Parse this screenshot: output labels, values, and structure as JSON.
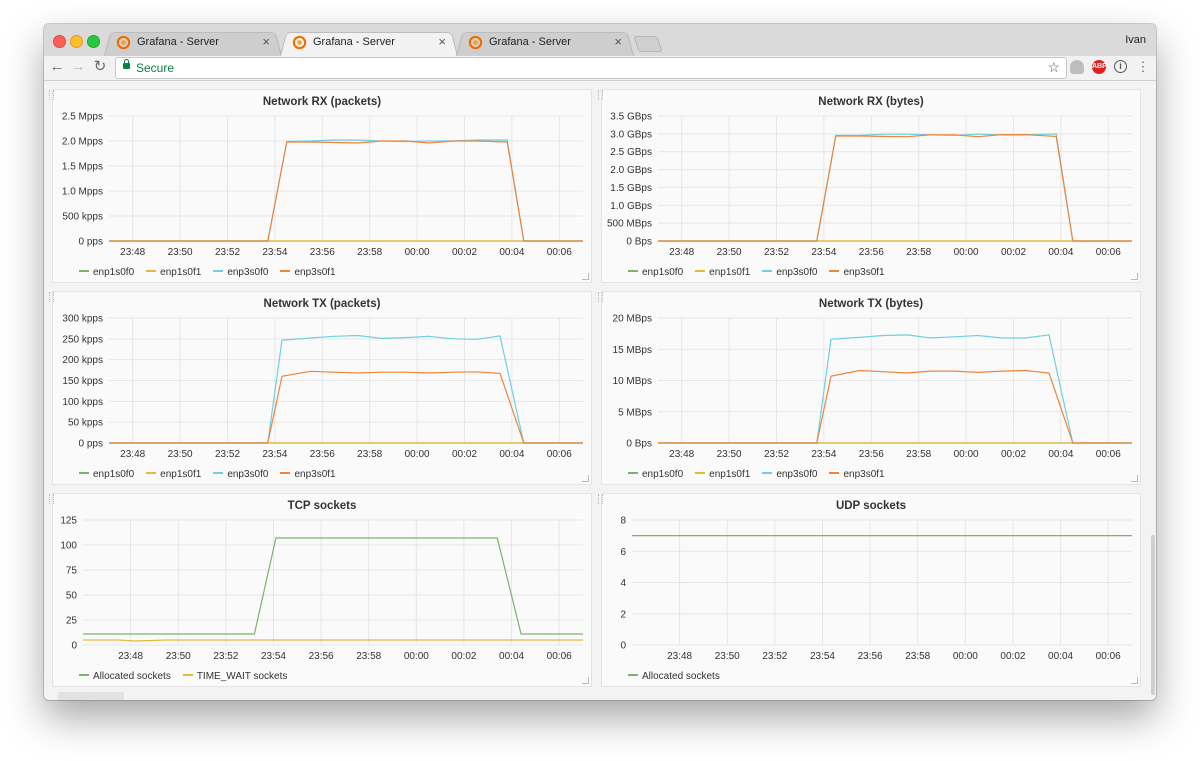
{
  "browser": {
    "tabs": [
      {
        "title": "Grafana - Server",
        "active": false
      },
      {
        "title": "Grafana - Server",
        "active": true
      },
      {
        "title": "Grafana - Server",
        "active": false
      }
    ],
    "profile_name": "Ivan",
    "address_secure_label": "Secure",
    "close_glyph": "×",
    "icons": [
      "back-arrow-icon",
      "forward-arrow-icon",
      "reload-icon",
      "lock-icon",
      "star-icon",
      "cloud-extension-icon",
      "adblock-icon",
      "info-icon",
      "menu-icon"
    ],
    "adblock_label": "ABP"
  },
  "colors": {
    "enp1s0f0": "#7eb26d",
    "enp1s0f1": "#eab839",
    "enp3s0f0": "#6ed0e0",
    "enp3s0f1": "#ef843c",
    "allocated": "#7eb26d",
    "time_wait": "#eab839"
  },
  "panels": [
    {
      "title": "Network RX (packets)",
      "legend": [
        "enp1s0f0",
        "enp1s0f1",
        "enp3s0f0",
        "enp3s0f1"
      ],
      "chart_data": {
        "type": "line",
        "title": "Network RX (packets)",
        "yticks": [
          "0 pps",
          "500 kpps",
          "1.0 Mpps",
          "1.5 Mpps",
          "2.0 Mpps",
          "2.5 Mpps"
        ],
        "ylim": [
          0,
          2.5
        ],
        "xticks": [
          "23:48",
          "23:50",
          "23:52",
          "23:54",
          "23:56",
          "23:58",
          "00:00",
          "00:02",
          "00:04",
          "00:06"
        ],
        "xlim": [
          0,
          20
        ],
        "series": [
          {
            "name": "enp1s0f0",
            "x": [
              0,
              20
            ],
            "y": [
              0,
              0
            ]
          },
          {
            "name": "enp1s0f1",
            "x": [
              0,
              20
            ],
            "y": [
              0,
              0
            ]
          },
          {
            "name": "enp3s0f0",
            "x": [
              0,
              6.7,
              7.5,
              8.5,
              9.5,
              10.5,
              11.5,
              12.5,
              13.5,
              14.5,
              15.5,
              16.8,
              17.5,
              20
            ],
            "y": [
              0,
              0,
              1.99,
              2.0,
              2.02,
              2.02,
              2.0,
              1.99,
              2.0,
              2.0,
              2.02,
              2.02,
              0,
              0
            ]
          },
          {
            "name": "enp3s0f1",
            "x": [
              0,
              6.7,
              7.5,
              8.5,
              9.5,
              10.5,
              11.5,
              12.5,
              13.5,
              14.5,
              15.5,
              16.8,
              17.5,
              20
            ],
            "y": [
              0,
              0,
              1.98,
              1.98,
              1.97,
              1.96,
              2.0,
              2.0,
              1.96,
              2.0,
              2.0,
              1.98,
              0,
              0
            ]
          }
        ]
      }
    },
    {
      "title": "Network RX (bytes)",
      "legend": [
        "enp1s0f0",
        "enp1s0f1",
        "enp3s0f0",
        "enp3s0f1"
      ],
      "chart_data": {
        "type": "line",
        "title": "Network RX (bytes)",
        "yticks": [
          "0 Bps",
          "500 MBps",
          "1.0 GBps",
          "1.5 GBps",
          "2.0 GBps",
          "2.5 GBps",
          "3.0 GBps",
          "3.5 GBps"
        ],
        "ylim": [
          0,
          3.5
        ],
        "xticks": [
          "23:48",
          "23:50",
          "23:52",
          "23:54",
          "23:56",
          "23:58",
          "00:00",
          "00:02",
          "00:04",
          "00:06"
        ],
        "xlim": [
          0,
          20
        ],
        "series": [
          {
            "name": "enp1s0f0",
            "x": [
              0,
              20
            ],
            "y": [
              0,
              0
            ]
          },
          {
            "name": "enp1s0f1",
            "x": [
              0,
              20
            ],
            "y": [
              0,
              0
            ]
          },
          {
            "name": "enp3s0f0",
            "x": [
              0,
              6.7,
              7.5,
              8.5,
              9.5,
              10.5,
              11.5,
              12.5,
              13.5,
              14.5,
              15.5,
              16.8,
              17.5,
              20
            ],
            "y": [
              0,
              0,
              2.96,
              2.96,
              2.99,
              2.99,
              2.97,
              2.96,
              2.99,
              2.97,
              2.97,
              3.0,
              0,
              0
            ]
          },
          {
            "name": "enp3s0f1",
            "x": [
              0,
              6.7,
              7.5,
              8.5,
              9.5,
              10.5,
              11.5,
              12.5,
              13.5,
              14.5,
              15.5,
              16.8,
              17.5,
              20
            ],
            "y": [
              0,
              0,
              2.94,
              2.94,
              2.93,
              2.92,
              2.97,
              2.97,
              2.92,
              2.98,
              2.98,
              2.93,
              0,
              0
            ]
          }
        ]
      }
    },
    {
      "title": "Network TX (packets)",
      "legend": [
        "enp1s0f0",
        "enp1s0f1",
        "enp3s0f0",
        "enp3s0f1"
      ],
      "chart_data": {
        "type": "line",
        "title": "Network TX (packets)",
        "yticks": [
          "0 pps",
          "50 kpps",
          "100 kpps",
          "150 kpps",
          "200 kpps",
          "250 kpps",
          "300 kpps"
        ],
        "ylim": [
          0,
          300
        ],
        "xticks": [
          "23:48",
          "23:50",
          "23:52",
          "23:54",
          "23:56",
          "23:58",
          "00:00",
          "00:02",
          "00:04",
          "00:06"
        ],
        "xlim": [
          0,
          20
        ],
        "series": [
          {
            "name": "enp1s0f0",
            "x": [
              0,
              20
            ],
            "y": [
              0,
              0
            ]
          },
          {
            "name": "enp1s0f1",
            "x": [
              0,
              20
            ],
            "y": [
              0,
              0
            ]
          },
          {
            "name": "enp3s0f0",
            "x": [
              0,
              6.7,
              7.3,
              8.5,
              9.5,
              10.5,
              11.5,
              12.5,
              13.5,
              14.5,
              15.5,
              16.5,
              17.5,
              20
            ],
            "y": [
              0,
              0,
              247,
              252,
              256,
              258,
              251,
              253,
              256,
              250,
              249,
              257,
              0,
              0
            ]
          },
          {
            "name": "enp3s0f1",
            "x": [
              0,
              6.7,
              7.3,
              8.5,
              9.5,
              10.5,
              11.5,
              12.5,
              13.5,
              14.5,
              15.5,
              16.5,
              17.5,
              20
            ],
            "y": [
              0,
              0,
              160,
              172,
              170,
              168,
              170,
              170,
              168,
              170,
              171,
              167,
              0,
              0
            ]
          }
        ]
      }
    },
    {
      "title": "Network TX (bytes)",
      "legend": [
        "enp1s0f0",
        "enp1s0f1",
        "enp3s0f0",
        "enp3s0f1"
      ],
      "chart_data": {
        "type": "line",
        "title": "Network TX (bytes)",
        "yticks": [
          "0 Bps",
          "5 MBps",
          "10 MBps",
          "15 MBps",
          "20 MBps"
        ],
        "ylim": [
          0,
          20
        ],
        "xticks": [
          "23:48",
          "23:50",
          "23:52",
          "23:54",
          "23:56",
          "23:58",
          "00:00",
          "00:02",
          "00:04",
          "00:06"
        ],
        "xlim": [
          0,
          20
        ],
        "series": [
          {
            "name": "enp1s0f0",
            "x": [
              0,
              20
            ],
            "y": [
              0,
              0
            ]
          },
          {
            "name": "enp1s0f1",
            "x": [
              0,
              20
            ],
            "y": [
              0,
              0
            ]
          },
          {
            "name": "enp3s0f0",
            "x": [
              0,
              6.7,
              7.3,
              8.5,
              9.5,
              10.5,
              11.5,
              12.5,
              13.5,
              14.5,
              15.5,
              16.5,
              17.5,
              20
            ],
            "y": [
              0,
              0,
              16.6,
              16.9,
              17.2,
              17.3,
              16.8,
              17.0,
              17.2,
              16.8,
              16.8,
              17.3,
              0,
              0
            ]
          },
          {
            "name": "enp3s0f1",
            "x": [
              0,
              6.7,
              7.3,
              8.5,
              9.5,
              10.5,
              11.5,
              12.5,
              13.5,
              14.5,
              15.5,
              16.5,
              17.5,
              20
            ],
            "y": [
              0,
              0,
              10.7,
              11.6,
              11.4,
              11.2,
              11.5,
              11.5,
              11.3,
              11.5,
              11.6,
              11.2,
              0,
              0
            ]
          }
        ]
      }
    },
    {
      "title": "TCP sockets",
      "legend": [
        "Allocated sockets",
        "TIME_WAIT sockets"
      ],
      "chart_data": {
        "type": "line",
        "title": "TCP sockets",
        "yticks": [
          "0",
          "25",
          "50",
          "75",
          "100",
          "125"
        ],
        "ylim": [
          0,
          125
        ],
        "xticks": [
          "23:48",
          "23:50",
          "23:52",
          "23:54",
          "23:56",
          "23:58",
          "00:00",
          "00:02",
          "00:04",
          "00:06"
        ],
        "xlim": [
          -1,
          20
        ],
        "series": [
          {
            "name": "Allocated sockets",
            "x": [
              -1,
              6.2,
              7.1,
              16.4,
              17.4,
              20
            ],
            "y": [
              11,
              11,
              107,
              107,
              11,
              11
            ]
          },
          {
            "name": "TIME_WAIT sockets",
            "x": [
              -1,
              0.5,
              1.2,
              2.5,
              20
            ],
            "y": [
              5,
              5,
              4,
              5,
              5
            ]
          }
        ]
      }
    },
    {
      "title": "UDP sockets",
      "legend": [
        "Allocated sockets"
      ],
      "chart_data": {
        "type": "line",
        "title": "UDP sockets",
        "yticks": [
          "0",
          "2",
          "4",
          "6",
          "8"
        ],
        "ylim": [
          0,
          8
        ],
        "xticks": [
          "23:48",
          "23:50",
          "23:52",
          "23:54",
          "23:56",
          "23:58",
          "00:00",
          "00:02",
          "00:04",
          "00:06"
        ],
        "xlim": [
          -1,
          20
        ],
        "series": [
          {
            "name": "Allocated sockets",
            "x": [
              -1,
              20
            ],
            "y": [
              7,
              7
            ]
          }
        ]
      }
    }
  ]
}
